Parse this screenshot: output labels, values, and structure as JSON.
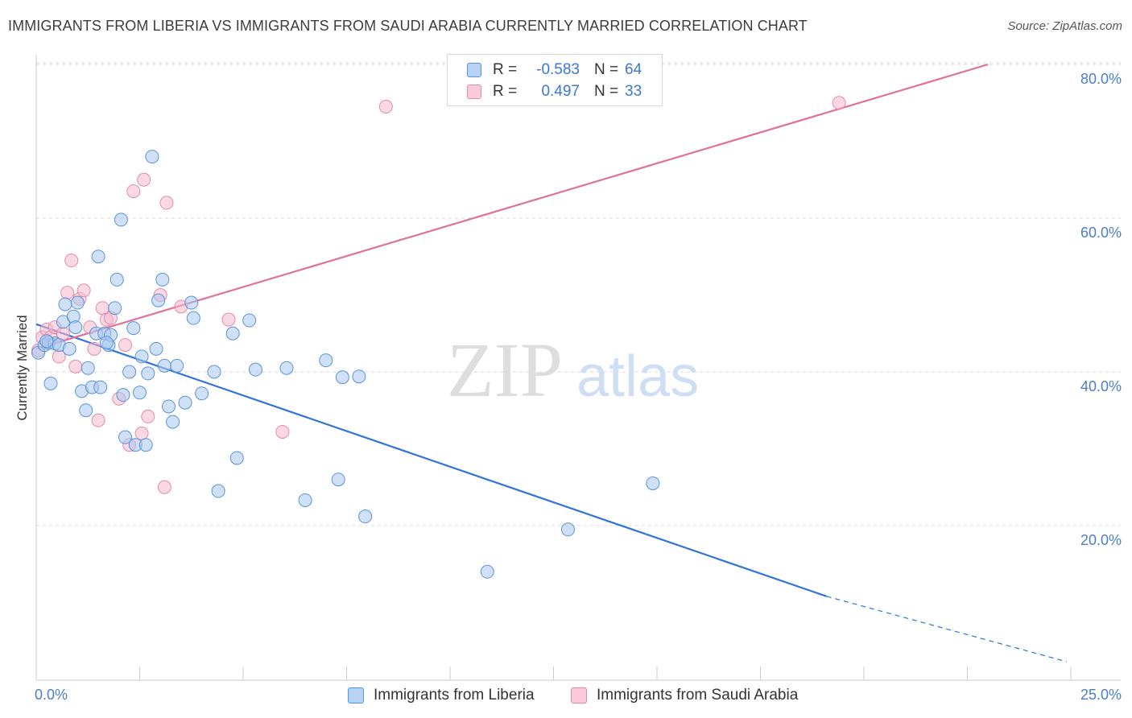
{
  "title": "IMMIGRANTS FROM LIBERIA VS IMMIGRANTS FROM SAUDI ARABIA CURRENTLY MARRIED CORRELATION CHART",
  "source": "Source: ZipAtlas.com",
  "watermark": {
    "zip": "ZIP",
    "atlas": "atlas"
  },
  "colors": {
    "liberia_fill": "#a9c8f0",
    "liberia_stroke": "#5a93dd",
    "liberia_line": "#2f74d6",
    "saudi_fill": "#f7b9cd",
    "saudi_stroke": "#e48aaa",
    "saudi_line": "#e0719b",
    "tick_text": "#4a7fc8",
    "grid": "#d9d9d9"
  },
  "legend": {
    "rows": [
      {
        "r_label": "R =",
        "r_value": "-0.583",
        "n_label": "N =",
        "n_value": "64"
      },
      {
        "r_label": "R =",
        "r_value": "0.497",
        "n_label": "N =",
        "n_value": "33"
      }
    ]
  },
  "bottom_legend": {
    "liberia": "Immigrants from Liberia",
    "saudi": "Immigrants from Saudi Arabia"
  },
  "chart_data": {
    "type": "scatter",
    "ylabel": "Currently Married",
    "xlabel": "",
    "x_tick_labels": [
      "0.0%",
      "25.0%"
    ],
    "y_tick_labels": [
      "20.0%",
      "40.0%",
      "60.0%",
      "80.0%"
    ],
    "y_ticks": [
      20,
      40,
      60,
      80
    ],
    "xlim": [
      0,
      25
    ],
    "ylim": [
      0,
      82
    ],
    "grid": "horizontal dashed",
    "legend_position": "top-center",
    "series": [
      {
        "name": "Immigrants from Liberia",
        "r": -0.583,
        "n": 64,
        "points": [
          [
            0.05,
            42.5
          ],
          [
            0.2,
            43.5
          ],
          [
            0.3,
            43.8
          ],
          [
            0.35,
            38.5
          ],
          [
            0.45,
            43.7
          ],
          [
            0.55,
            43.5
          ],
          [
            0.65,
            46.5
          ],
          [
            0.7,
            48.8
          ],
          [
            0.8,
            43.0
          ],
          [
            0.9,
            47.2
          ],
          [
            0.95,
            45.8
          ],
          [
            1.0,
            49.0
          ],
          [
            1.1,
            37.5
          ],
          [
            1.2,
            35.0
          ],
          [
            1.25,
            40.5
          ],
          [
            1.35,
            38.0
          ],
          [
            1.45,
            45.0
          ],
          [
            1.5,
            55.0
          ],
          [
            1.55,
            38.0
          ],
          [
            1.65,
            45.0
          ],
          [
            1.75,
            43.5
          ],
          [
            1.8,
            44.8
          ],
          [
            1.9,
            48.3
          ],
          [
            1.95,
            52.0
          ],
          [
            2.05,
            59.8
          ],
          [
            2.1,
            37.0
          ],
          [
            2.15,
            31.5
          ],
          [
            2.25,
            40.0
          ],
          [
            2.35,
            45.7
          ],
          [
            2.4,
            30.5
          ],
          [
            2.5,
            37.3
          ],
          [
            2.55,
            42.0
          ],
          [
            2.65,
            30.5
          ],
          [
            2.7,
            39.8
          ],
          [
            2.8,
            68.0
          ],
          [
            2.9,
            43.0
          ],
          [
            2.95,
            49.3
          ],
          [
            3.05,
            52.0
          ],
          [
            3.1,
            40.8
          ],
          [
            3.2,
            35.5
          ],
          [
            3.3,
            33.5
          ],
          [
            3.4,
            40.8
          ],
          [
            3.6,
            36.0
          ],
          [
            3.75,
            49.0
          ],
          [
            3.8,
            47.0
          ],
          [
            4.0,
            37.2
          ],
          [
            4.3,
            40.0
          ],
          [
            4.4,
            24.5
          ],
          [
            4.75,
            45.0
          ],
          [
            4.85,
            28.8
          ],
          [
            5.15,
            46.7
          ],
          [
            5.3,
            40.3
          ],
          [
            6.05,
            40.5
          ],
          [
            6.5,
            23.3
          ],
          [
            7.0,
            41.5
          ],
          [
            7.3,
            26.0
          ],
          [
            7.4,
            39.3
          ],
          [
            7.8,
            39.4
          ],
          [
            7.95,
            21.2
          ],
          [
            10.9,
            14.0
          ],
          [
            12.85,
            19.5
          ],
          [
            14.9,
            25.5
          ],
          [
            0.25,
            44.0
          ],
          [
            1.7,
            43.8
          ]
        ],
        "trend": {
          "x0": 0.0,
          "y0": 46.2,
          "x1": 19.1,
          "y1": 10.8,
          "dash_to_x": 24.9,
          "dash_to_y": 2.3
        }
      },
      {
        "name": "Immigrants from Saudi Arabia",
        "r": 0.497,
        "n": 33,
        "points": [
          [
            0.05,
            42.8
          ],
          [
            0.15,
            44.5
          ],
          [
            0.25,
            45.5
          ],
          [
            0.35,
            44.5
          ],
          [
            0.45,
            45.8
          ],
          [
            0.55,
            42.0
          ],
          [
            0.65,
            45.0
          ],
          [
            0.75,
            50.3
          ],
          [
            0.85,
            54.5
          ],
          [
            0.95,
            40.7
          ],
          [
            1.05,
            49.5
          ],
          [
            1.15,
            50.6
          ],
          [
            1.3,
            45.8
          ],
          [
            1.4,
            43.0
          ],
          [
            1.5,
            33.7
          ],
          [
            1.6,
            48.3
          ],
          [
            1.7,
            46.8
          ],
          [
            1.8,
            47.0
          ],
          [
            2.0,
            36.5
          ],
          [
            2.15,
            43.5
          ],
          [
            2.25,
            30.5
          ],
          [
            2.35,
            63.5
          ],
          [
            2.55,
            32.0
          ],
          [
            2.6,
            65.0
          ],
          [
            2.7,
            34.2
          ],
          [
            3.0,
            50.0
          ],
          [
            3.1,
            25.0
          ],
          [
            3.15,
            62.0
          ],
          [
            3.5,
            48.5
          ],
          [
            4.65,
            46.8
          ],
          [
            5.95,
            32.2
          ],
          [
            8.45,
            74.5
          ],
          [
            19.4,
            75.0
          ]
        ],
        "trend": {
          "x0": 0.0,
          "y0": 43.0,
          "x1": 23.0,
          "y1": 80.0
        }
      }
    ]
  }
}
